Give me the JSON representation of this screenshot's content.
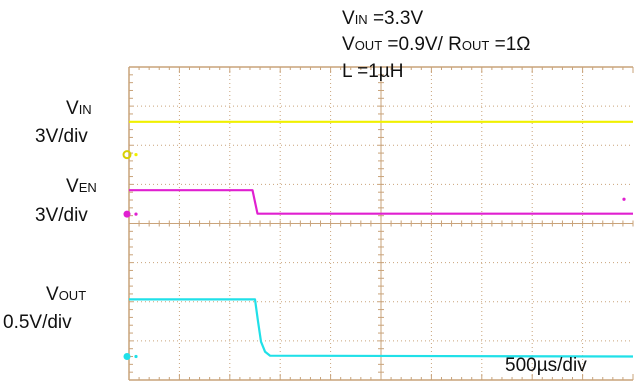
{
  "conditions": {
    "vin": {
      "sym": "V",
      "sub": "IN",
      "rest": " =3.3V"
    },
    "vout": {
      "sym": "V",
      "sub": "OUT",
      "rest": " =0.9V/ "
    },
    "rout": {
      "sym": "R",
      "sub": "OUT",
      "rest": " =1Ω"
    },
    "ind": "L =1µH"
  },
  "channels": [
    {
      "sym": "V",
      "sub": "IN",
      "scale": "3V/div",
      "color": "#f0f000"
    },
    {
      "sym": "V",
      "sub": "EN",
      "scale": "3V/div",
      "color": "#e020d0"
    },
    {
      "sym": "V",
      "sub": "OUT",
      "scale": "0.5V/div",
      "color": "#20e0e8"
    }
  ],
  "timebase": "500µs/div",
  "chart_data": {
    "type": "line",
    "x_unit": "div",
    "xlim": [
      0,
      10
    ],
    "ylim": [
      0,
      8
    ],
    "grid": true,
    "series": [
      {
        "name": "VIN",
        "x": [
          0,
          10
        ],
        "y": [
          6.6,
          6.6
        ]
      },
      {
        "name": "VEN",
        "x": [
          0,
          2.45,
          2.55,
          10
        ],
        "y": [
          4.85,
          4.85,
          4.25,
          4.25
        ]
      },
      {
        "name": "VOUT",
        "x": [
          0,
          2.5,
          2.56,
          2.62,
          2.7,
          2.8,
          10
        ],
        "y": [
          2.06,
          2.06,
          1.5,
          0.98,
          0.72,
          0.62,
          0.6
        ]
      }
    ]
  }
}
